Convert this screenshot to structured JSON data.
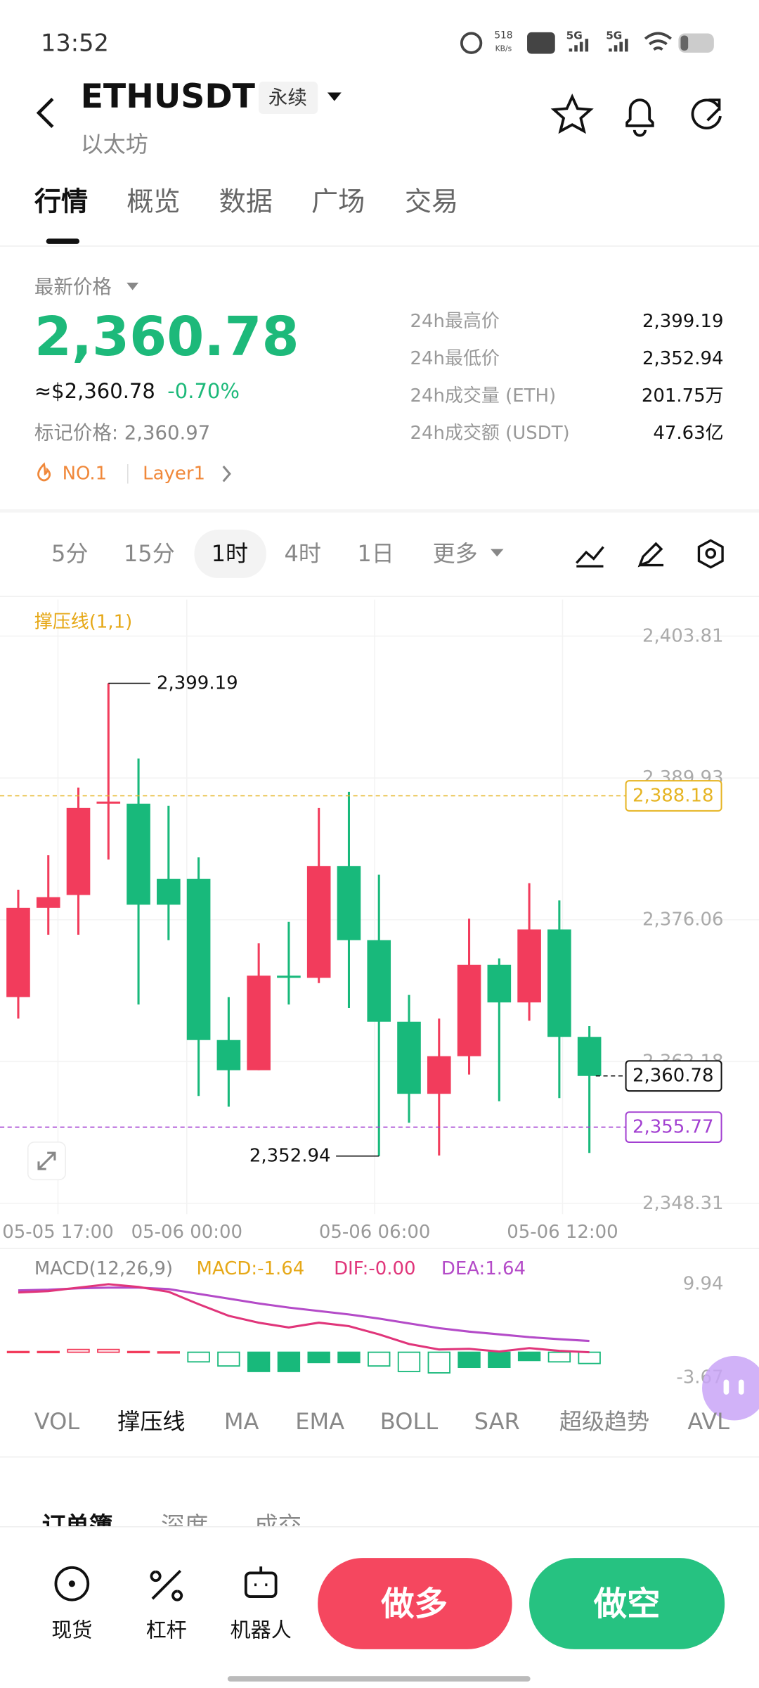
{
  "status_bar": {
    "time": "13:52",
    "speed": "518",
    "speed_unit": "KB/s",
    "network_1": "5G",
    "network_2": "5G"
  },
  "header": {
    "symbol": "ETHUSDT",
    "contract": "永续",
    "name": "以太坊"
  },
  "tabs": [
    "行情",
    "概览",
    "数据",
    "广场",
    "交易"
  ],
  "ticker": {
    "label": "最新价格",
    "last": "2,360.78",
    "usd": "≈$2,360.78",
    "change": "-0.70%",
    "mark_price": "标记价格: 2,360.97",
    "rank": "NO.1",
    "tag": "Layer1",
    "stats": [
      {
        "label": "24h最高价",
        "value": "2,399.19"
      },
      {
        "label": "24h最低价",
        "value": "2,352.94"
      },
      {
        "label": "24h成交量 (ETH)",
        "value": "201.75万"
      },
      {
        "label": "24h成交额 (USDT)",
        "value": "47.63亿"
      }
    ]
  },
  "intervals": [
    "5分",
    "15分",
    "1时",
    "4时",
    "1日",
    "更多"
  ],
  "kline": {
    "indicator": "撑压线(1,1)",
    "ylim": [
      2347.26,
      2407.38
    ],
    "yticks": [
      {
        "value": 2403.81,
        "label": "2,403.81"
      },
      {
        "value": 2389.93,
        "label": "2,389.93"
      },
      {
        "value": 2376.06,
        "label": "2,376.06"
      },
      {
        "value": 2362.18,
        "label": "2,362.18"
      },
      {
        "value": 2348.31,
        "label": "2,348.31"
      }
    ],
    "x_labels": [
      "05-05 17:00",
      "05-06 00:00",
      "05-06 06:00",
      "05-06 12:00"
    ],
    "open": [
      2368.49,
      2377.22,
      2378.48,
      2387.41,
      2387.41,
      2380.05,
      2380.05,
      2364.29,
      2361.34,
      2370.59,
      2370.38,
      2381.32,
      2374.06,
      2366.08,
      2359.03,
      2362.71,
      2371.65,
      2367.97,
      2375.11,
      2364.6
    ],
    "high": [
      2379.0,
      2382.37,
      2388.99,
      2399.19,
      2391.83,
      2387.2,
      2382.16,
      2368.49,
      2373.75,
      2375.85,
      2386.99,
      2388.57,
      2380.47,
      2368.7,
      2366.39,
      2376.17,
      2372.28,
      2379.63,
      2377.95,
      2365.65
    ],
    "low": [
      2366.39,
      2374.59,
      2374.59,
      2381.95,
      2367.76,
      2374.06,
      2358.82,
      2357.77,
      2361.34,
      2367.76,
      2369.86,
      2367.44,
      2352.94,
      2356.2,
      2353.0,
      2360.92,
      2358.3,
      2366.18,
      2358.61,
      2353.25
    ],
    "close": [
      2377.22,
      2378.27,
      2386.99,
      2387.62,
      2377.53,
      2377.53,
      2364.29,
      2361.34,
      2370.59,
      2370.49,
      2381.32,
      2374.06,
      2366.08,
      2359.03,
      2362.71,
      2371.65,
      2367.97,
      2375.11,
      2364.6,
      2360.78
    ],
    "high_marker": {
      "value": 2399.19,
      "label": "2,399.19"
    },
    "low_marker": {
      "value": 2352.94,
      "label": "2,352.94"
    },
    "resistance": {
      "value": 2388.18,
      "label": "2,388.18"
    },
    "last": {
      "value": 2360.78,
      "label": "2,360.78"
    },
    "support": {
      "value": 2355.77,
      "label": "2,355.77"
    }
  },
  "macd": {
    "label": "MACD(12,26,9)",
    "macd": "MACD:-1.64",
    "dif_label": "DIF:-0.00",
    "dea_label": "DEA:1.64",
    "ylim": [
      -4.92,
      11.5
    ],
    "yticks": [
      9.94,
      -3.67
    ],
    "hist": [
      0.1,
      0.1,
      0.4,
      0.4,
      0.1,
      0.05,
      -1.4,
      -2.0,
      -2.8,
      -2.8,
      -1.5,
      -1.5,
      -2.0,
      -2.8,
      -3.0,
      -2.2,
      -2.2,
      -1.2,
      -1.4,
      -1.64
    ],
    "hollow": [
      true,
      true,
      true,
      true,
      true,
      true,
      true,
      true,
      false,
      false,
      false,
      false,
      true,
      true,
      true,
      false,
      false,
      false,
      true,
      true
    ],
    "dif": [
      8.7,
      8.9,
      9.4,
      9.9,
      9.5,
      8.8,
      7.0,
      5.3,
      4.3,
      3.6,
      4.3,
      3.8,
      2.6,
      1.2,
      0.4,
      0.5,
      0.1,
      0.6,
      0.2,
      0.0
    ],
    "dea": [
      9.0,
      9.1,
      9.3,
      9.4,
      9.4,
      9.2,
      8.5,
      7.8,
      7.1,
      6.5,
      6.0,
      5.5,
      4.9,
      4.2,
      3.5,
      3.0,
      2.6,
      2.2,
      1.9,
      1.64
    ]
  },
  "indicators": [
    "VOL",
    "撑压线",
    "MA",
    "EMA",
    "BOLL",
    "SAR",
    "超级趋势",
    "AVL"
  ],
  "book_tabs": [
    "订单簿",
    "深度",
    "成交"
  ],
  "nav": [
    "现货",
    "杠杆",
    "机器人"
  ],
  "actions": {
    "long": "做多",
    "short": "做空"
  }
}
